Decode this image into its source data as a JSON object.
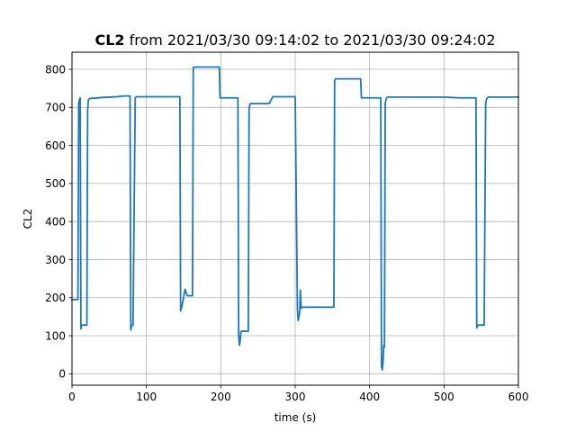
{
  "chart_data": {
    "type": "line",
    "title_bold": "CL2",
    "title_rest": " from 2021/03/30 09:14:02 to 2021/03/30 09:24:02",
    "xlabel": "time (s)",
    "ylabel": "CL2",
    "xlim": [
      0,
      600
    ],
    "ylim": [
      -30,
      845
    ],
    "xticks": [
      0,
      100,
      200,
      300,
      400,
      500,
      600
    ],
    "yticks": [
      0,
      100,
      200,
      300,
      400,
      500,
      600,
      700,
      800
    ],
    "grid": true,
    "line_color": "#1f77b4",
    "series": [
      {
        "x": [
          0,
          5,
          8,
          9,
          10,
          11,
          12,
          13,
          16,
          20,
          21,
          22,
          23,
          25,
          30,
          40,
          60,
          70,
          78,
          79,
          80,
          81,
          82,
          85,
          86,
          87,
          88,
          90,
          100,
          120,
          140,
          145,
          146,
          148,
          149,
          150,
          152,
          155,
          160,
          162,
          163,
          164,
          165,
          170,
          180,
          195,
          198,
          199,
          200,
          205,
          215,
          223,
          224,
          225,
          226,
          227,
          228,
          229,
          232,
          237,
          238,
          239,
          240,
          241,
          245,
          255,
          265,
          270,
          275,
          280,
          290,
          300,
          303,
          304,
          305,
          306,
          307,
          308,
          310,
          315,
          330,
          350,
          352,
          353,
          354,
          355,
          360,
          380,
          388,
          389,
          390,
          395,
          410,
          415,
          416,
          417,
          418,
          419,
          420,
          421,
          422,
          423,
          424,
          425,
          426,
          428,
          430,
          450,
          480,
          500,
          520,
          540,
          542,
          543,
          544,
          545,
          548,
          554,
          556,
          557,
          558,
          560,
          565,
          570,
          580,
          600
        ],
        "y": [
          195,
          195,
          195,
          710,
          720,
          725,
          118,
          128,
          128,
          128,
          690,
          720,
          722,
          724,
          724,
          726,
          728,
          730,
          730,
          115,
          125,
          128,
          128,
          725,
          727,
          728,
          728,
          728,
          728,
          728,
          728,
          728,
          165,
          180,
          190,
          200,
          222,
          205,
          205,
          205,
          805,
          806,
          806,
          806,
          806,
          806,
          806,
          725,
          725,
          725,
          725,
          725,
          100,
          75,
          85,
          110,
          112,
          112,
          112,
          112,
          695,
          708,
          710,
          710,
          710,
          710,
          710,
          728,
          728,
          728,
          728,
          728,
          170,
          140,
          150,
          160,
          220,
          172,
          175,
          175,
          175,
          175,
          175,
          770,
          775,
          775,
          775,
          775,
          775,
          725,
          725,
          725,
          725,
          725,
          20,
          10,
          30,
          75,
          70,
          710,
          720,
          725,
          727,
          727,
          727,
          727,
          727,
          727,
          727,
          727,
          725,
          725,
          725,
          725,
          120,
          128,
          128,
          128,
          710,
          720,
          725,
          727,
          727,
          727,
          727,
          727
        ]
      }
    ]
  }
}
